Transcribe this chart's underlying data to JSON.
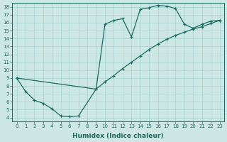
{
  "xlabel": "Humidex (Indice chaleur)",
  "ylabel": "",
  "bg_color": "#cde8e4",
  "line_color": "#1a6b60",
  "upper_x": [
    0,
    1,
    2,
    3,
    4,
    5,
    6,
    7,
    9,
    10,
    11,
    12,
    13,
    14,
    15,
    16,
    17,
    18,
    19,
    20,
    21,
    22,
    23
  ],
  "upper_y": [
    9.0,
    7.3,
    6.2,
    5.8,
    5.1,
    4.2,
    4.1,
    4.2,
    7.6,
    15.8,
    16.3,
    16.5,
    14.2,
    17.7,
    17.9,
    18.2,
    18.1,
    17.8,
    15.8,
    15.3,
    15.8,
    16.2,
    16.3
  ],
  "lower_x": [
    0,
    9,
    10,
    11,
    12,
    13,
    14,
    15,
    16,
    17,
    18,
    19,
    20,
    21,
    22,
    23
  ],
  "lower_y": [
    9.0,
    7.6,
    8.5,
    9.3,
    10.2,
    11.0,
    11.8,
    12.6,
    13.3,
    13.9,
    14.4,
    14.8,
    15.2,
    15.5,
    15.9,
    16.3
  ],
  "xlim": [
    -0.5,
    23.5
  ],
  "ylim": [
    3.5,
    18.5
  ],
  "yticks": [
    4,
    5,
    6,
    7,
    8,
    9,
    10,
    11,
    12,
    13,
    14,
    15,
    16,
    17,
    18
  ],
  "xticks": [
    0,
    1,
    2,
    3,
    4,
    5,
    6,
    7,
    8,
    9,
    10,
    11,
    12,
    13,
    14,
    15,
    16,
    17,
    18,
    19,
    20,
    21,
    22,
    23
  ]
}
